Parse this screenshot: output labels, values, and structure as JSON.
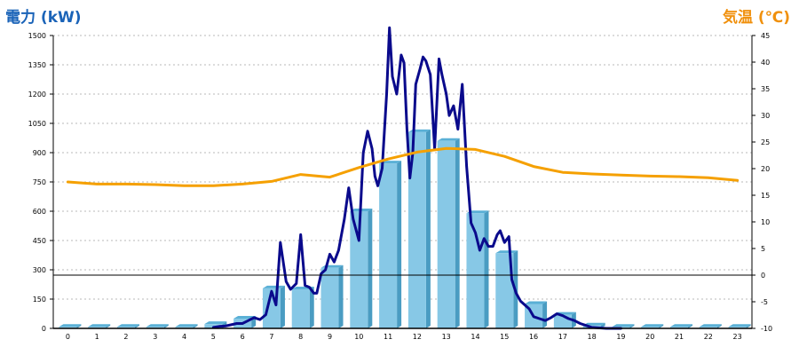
{
  "chart_data": {
    "type": "bar+line",
    "ylabel_left": "電力 (kW)",
    "ylabel_right": "気温 (℃)",
    "color_left_label": "#1a63b8",
    "color_right_label": "#f0900c",
    "ylim_left": [
      0,
      1500
    ],
    "yticks_left": [
      "0",
      "150",
      "300",
      "450",
      "600",
      "750",
      "900",
      "1050",
      "1200",
      "1350",
      "1500"
    ],
    "ylim_right": [
      -10,
      45
    ],
    "yticks_right": [
      "-10",
      "-5",
      "0",
      "5",
      "10",
      "15",
      "20",
      "25",
      "30",
      "35",
      "40",
      "45"
    ],
    "categories": [
      "0",
      "1",
      "2",
      "3",
      "4",
      "5",
      "6",
      "7",
      "8",
      "9",
      "10",
      "11",
      "12",
      "13",
      "14",
      "15",
      "16",
      "17",
      "18",
      "19",
      "20",
      "21",
      "22",
      "23"
    ],
    "grid": true,
    "series": [
      {
        "kind": "bar",
        "color": "#87c8e6",
        "values": [
          8,
          8,
          8,
          8,
          8,
          22,
          50,
          205,
          200,
          310,
          600,
          845,
          1005,
          960,
          590,
          385,
          125,
          70,
          15,
          8,
          8,
          8,
          8,
          8
        ]
      },
      {
        "kind": "line",
        "axis": "left",
        "color": "#0a0a8c",
        "x": [
          5.0,
          5.2,
          5.4,
          5.6,
          5.8,
          6.0,
          6.2,
          6.4,
          6.6,
          6.8,
          7.0,
          7.15,
          7.3,
          7.5,
          7.65,
          7.85,
          8.0,
          8.15,
          8.3,
          8.45,
          8.55,
          8.7,
          8.85,
          9.0,
          9.15,
          9.3,
          9.5,
          9.65,
          9.8,
          10.0,
          10.15,
          10.3,
          10.45,
          10.55,
          10.65,
          10.8,
          10.95,
          11.05,
          11.15,
          11.3,
          11.45,
          11.55,
          11.65,
          11.75,
          11.85,
          11.95,
          12.1,
          12.2,
          12.3,
          12.45,
          12.6,
          12.75,
          12.85,
          13.0,
          13.1,
          13.25,
          13.4,
          13.55,
          13.7,
          13.85,
          14.0,
          14.15,
          14.3,
          14.45,
          14.6,
          14.75,
          14.85,
          15.0,
          15.15,
          15.25,
          15.4,
          15.55,
          15.7,
          15.85,
          16.0,
          16.2,
          16.4,
          16.6,
          16.8,
          17.0,
          17.2,
          17.4,
          17.6,
          17.8,
          18.0,
          18.5,
          19.0
        ],
        "values": [
          5,
          10,
          12,
          18,
          25,
          25,
          40,
          55,
          45,
          70,
          190,
          120,
          440,
          240,
          200,
          230,
          480,
          220,
          210,
          180,
          180,
          280,
          300,
          380,
          340,
          400,
          560,
          720,
          560,
          450,
          900,
          1010,
          920,
          780,
          730,
          820,
          1200,
          1540,
          1290,
          1200,
          1400,
          1360,
          1020,
          770,
          900,
          1250,
          1330,
          1390,
          1370,
          1300,
          920,
          1380,
          1300,
          1200,
          1090,
          1140,
          1020,
          1250,
          830,
          540,
          490,
          400,
          460,
          420,
          420,
          480,
          500,
          440,
          470,
          250,
          180,
          140,
          120,
          100,
          60,
          50,
          40,
          55,
          75,
          65,
          50,
          40,
          25,
          15,
          5,
          0,
          0
        ]
      },
      {
        "kind": "line",
        "axis": "right",
        "color": "#f5a000",
        "x": [
          0,
          1,
          2,
          3,
          4,
          5,
          6,
          7,
          8,
          9,
          10,
          11,
          12,
          13,
          14,
          15,
          16,
          17,
          18,
          19,
          20,
          21,
          22,
          23
        ],
        "values": [
          17.5,
          17.1,
          17.1,
          17.0,
          16.8,
          16.8,
          17.1,
          17.6,
          18.9,
          18.4,
          20.2,
          21.8,
          23.1,
          23.8,
          23.6,
          22.3,
          20.4,
          19.3,
          19.0,
          18.8,
          18.6,
          18.5,
          18.3,
          17.8
        ]
      }
    ]
  }
}
